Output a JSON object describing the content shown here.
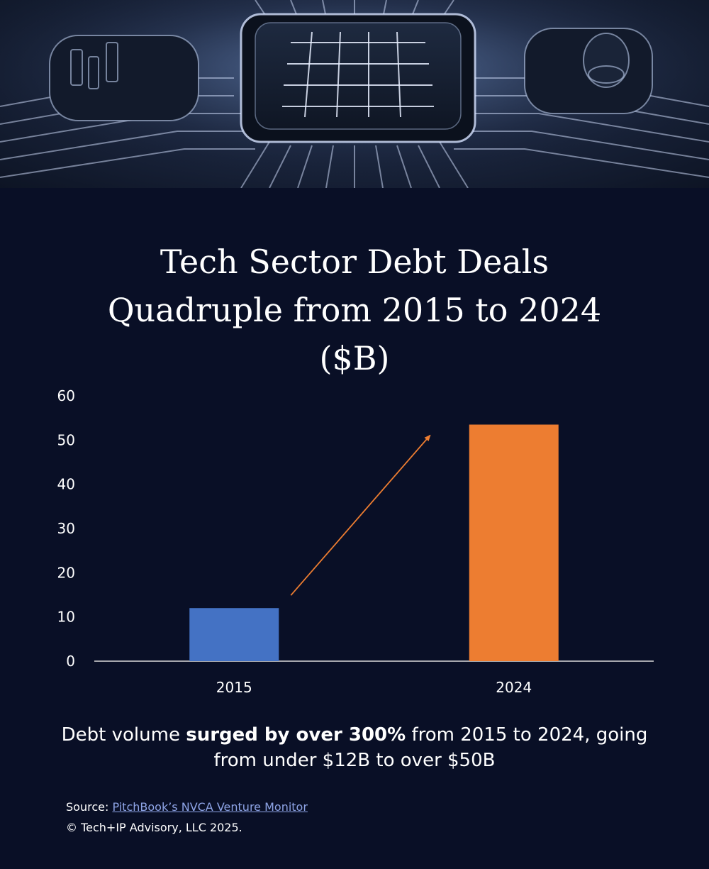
{
  "hero": {
    "image": "circuit-chip-image"
  },
  "title_lines": [
    "Tech Sector Debt Deals",
    "Quadruple from 2015 to 2024",
    "($B)"
  ],
  "caption": {
    "before": "Debt volume ",
    "bold": "surged by over 300%",
    "after": " from 2015 to 2024, going from under $12B to over $50B"
  },
  "source": {
    "label": "Source: ",
    "link_text": "PitchBook’s NVCA Venture Monitor"
  },
  "copyright": "© Tech+IP Advisory, LLC 2025.",
  "colors": {
    "background": "#090f26",
    "bar_2015": "#4472c4",
    "bar_2024": "#ed7d31",
    "arrow": "#ed7d31",
    "link": "#8ea4e6"
  },
  "chart_data": {
    "type": "bar",
    "categories": [
      "2015",
      "2024"
    ],
    "values": [
      12,
      53.5
    ],
    "bar_colors": [
      "#4472c4",
      "#ed7d31"
    ],
    "ylim": [
      0,
      60
    ],
    "yticks": [
      0,
      10,
      20,
      30,
      40,
      50,
      60
    ],
    "grid": false,
    "legend": "none",
    "annotation": {
      "type": "arrow",
      "from_category": "2015",
      "to_category": "2024"
    }
  }
}
